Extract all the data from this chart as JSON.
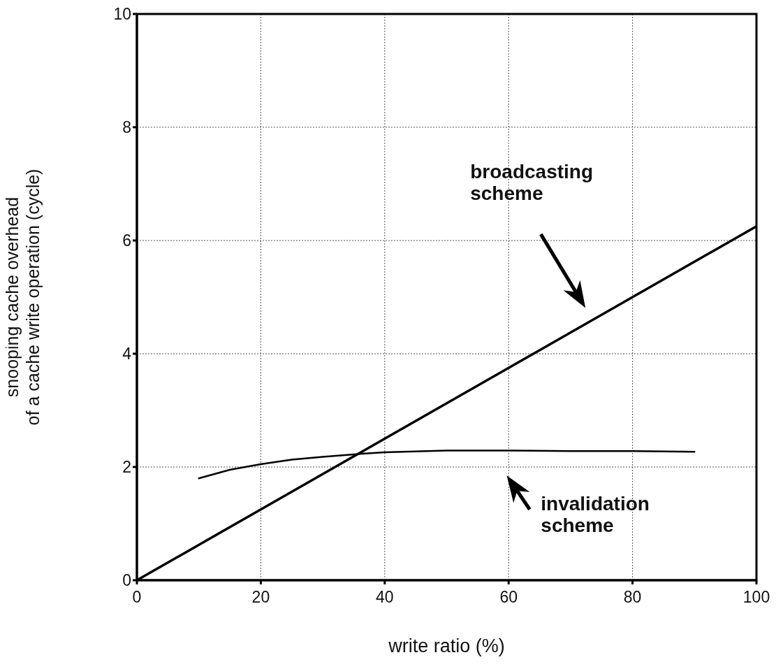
{
  "chart_data": {
    "type": "line",
    "xlabel": "write ratio (%)",
    "ylabel": "snooping cache overhead\nof a cache write operation (cycle)",
    "xlim": [
      0,
      100
    ],
    "xticks": [
      0,
      20,
      40,
      60,
      80,
      100
    ],
    "ylim": [
      0,
      10
    ],
    "yticks": [
      0,
      2,
      4,
      6,
      8,
      10
    ],
    "grid": true,
    "marker": "none",
    "line_style": "solid",
    "series": [
      {
        "color": "#000000",
        "x": [
          0,
          20,
          40,
          60,
          80,
          100
        ],
        "values": [
          0,
          1.25,
          2.5,
          3.75,
          5.0,
          6.25
        ]
      },
      {
        "color": "#000000",
        "x": [
          10,
          15,
          20,
          25,
          30,
          36,
          40,
          50,
          60,
          70,
          80,
          90
        ],
        "values": [
          1.8,
          1.95,
          2.05,
          2.13,
          2.18,
          2.23,
          2.26,
          2.29,
          2.29,
          2.28,
          2.28,
          2.27
        ]
      }
    ],
    "annotations": [
      "broadcasting\nscheme",
      "invalidation\nscheme"
    ]
  }
}
